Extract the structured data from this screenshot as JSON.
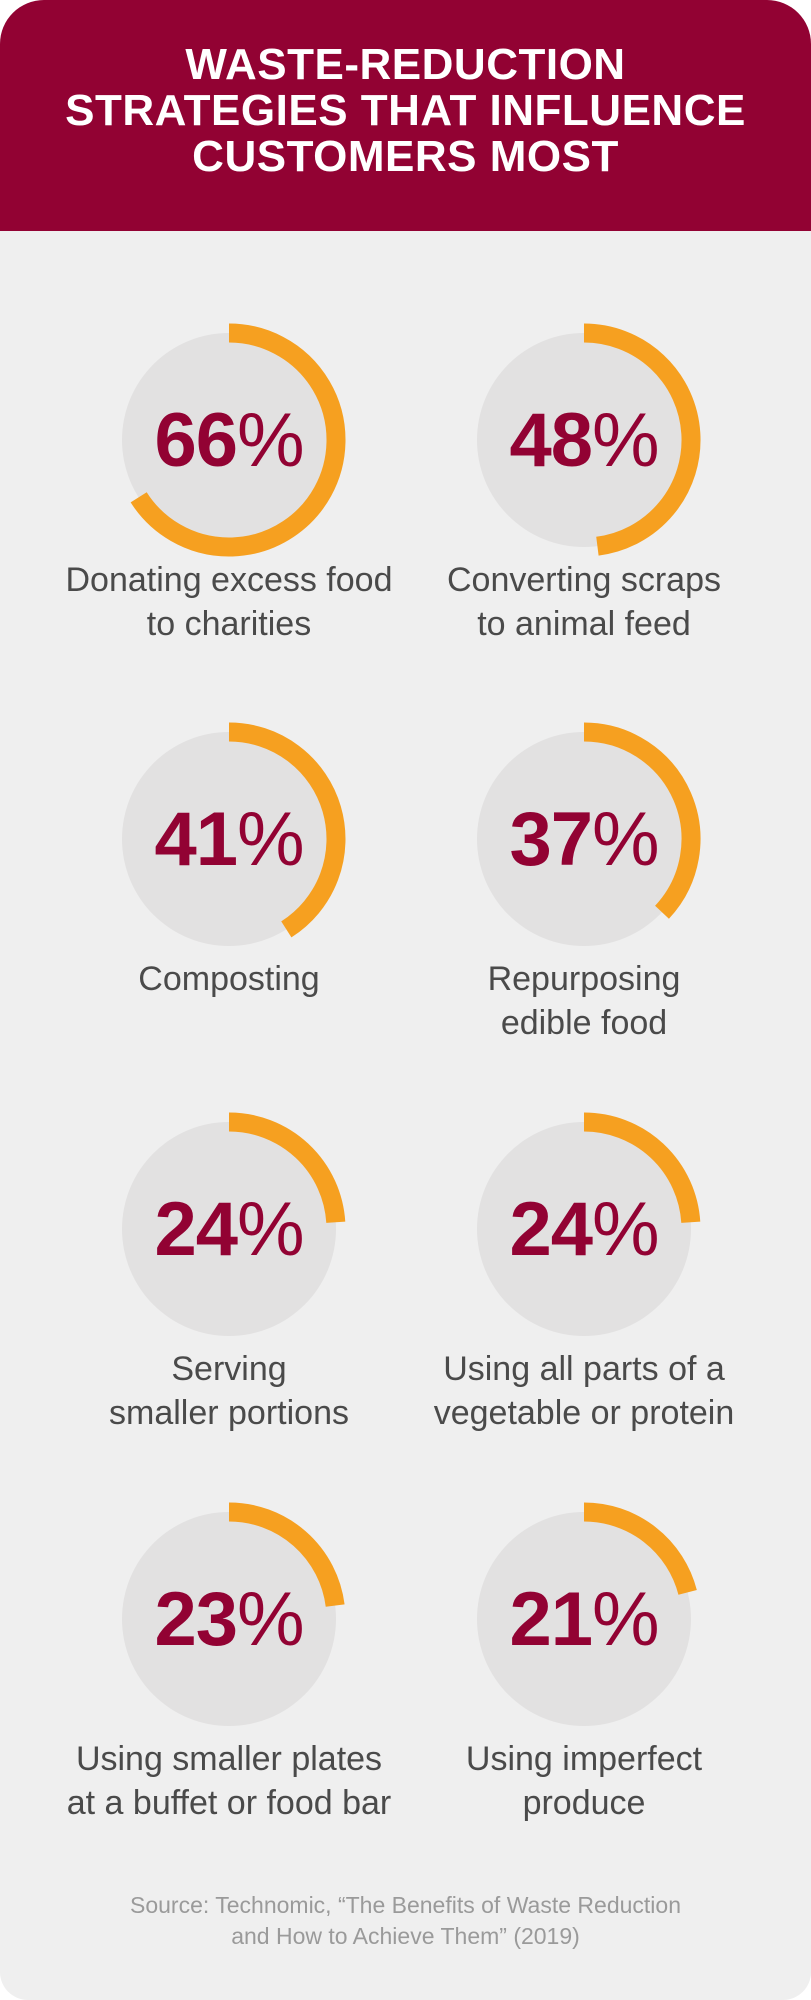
{
  "title": {
    "lines": [
      "WASTE-REDUCTION",
      "STRATEGIES THAT INFLUENCE",
      "CUSTOMERS MOST"
    ]
  },
  "colors": {
    "header_bg": "#920233",
    "background": "#efefef",
    "circle": "#e2e1e1",
    "arc": "#f6a020",
    "value_text": "#920233",
    "label_text": "#4a4a4a",
    "source_text": "#9a9a9a"
  },
  "chart_data": {
    "type": "donut-grid",
    "unit": "%",
    "items": [
      {
        "value": 66,
        "display": "66",
        "label_lines": [
          "Donating excess food",
          "to charities"
        ]
      },
      {
        "value": 48,
        "display": "48",
        "label_lines": [
          "Converting scraps",
          "to animal feed"
        ]
      },
      {
        "value": 41,
        "display": "41",
        "label_lines": [
          "Composting"
        ]
      },
      {
        "value": 37,
        "display": "37",
        "label_lines": [
          "Repurposing",
          "edible food"
        ]
      },
      {
        "value": 24,
        "display": "24",
        "label_lines": [
          "Serving",
          "smaller portions"
        ]
      },
      {
        "value": 24,
        "display": "24",
        "label_lines": [
          "Using all parts of a",
          "vegetable or protein"
        ]
      },
      {
        "value": 23,
        "display": "23",
        "label_lines": [
          "Using smaller plates",
          "at a buffet or food bar"
        ]
      },
      {
        "value": 21,
        "display": "21",
        "label_lines": [
          "Using imperfect",
          "produce"
        ]
      }
    ]
  },
  "source": {
    "lines": [
      "Source: Technomic, “The Benefits of Waste Reduction",
      "and How to Achieve Them” (2019)"
    ]
  }
}
